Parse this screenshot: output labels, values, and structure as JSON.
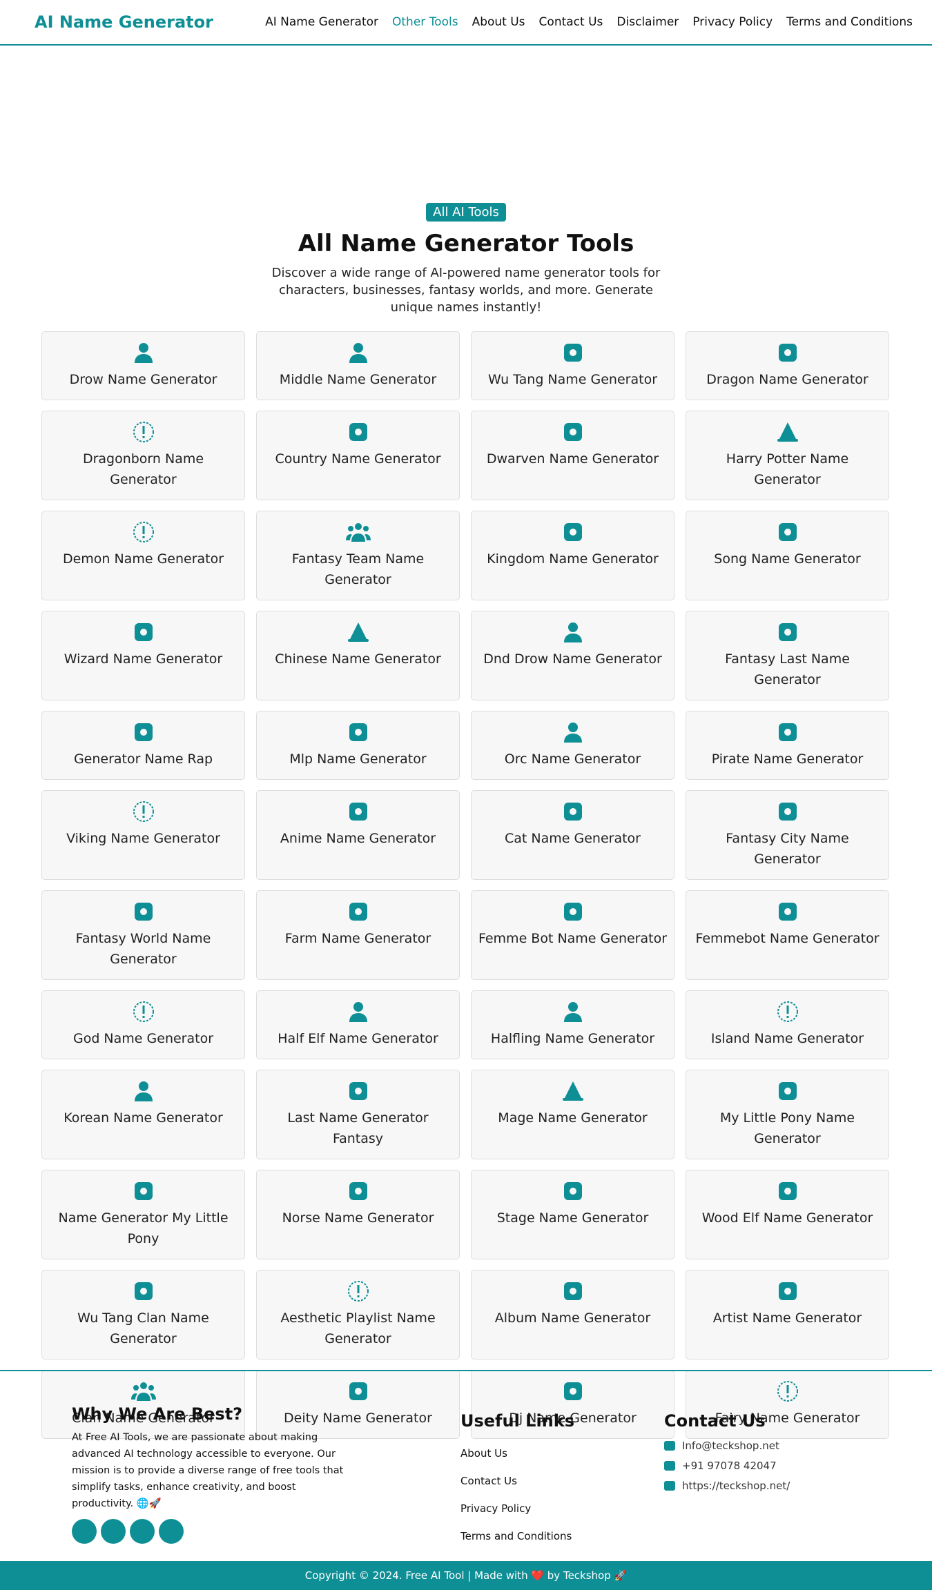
{
  "header": {
    "logo": "AI Name Generator",
    "nav": [
      "AI Name Generator",
      "Other Tools",
      "About Us",
      "Contact Us",
      "Disclaimer",
      "Privacy Policy",
      "Terms and Conditions"
    ]
  },
  "hero": {
    "badge": "All AI Tools",
    "title": "All Name Generator Tools",
    "description": "Discover a wide range of AI-powered name generator tools for characters, businesses, fantasy worlds, and more. Generate unique names instantly!"
  },
  "tools": [
    "Drow Name Generator",
    "Middle Name Generator",
    "Wu Tang Name Generator",
    "Dragon Name Generator",
    "Dragonborn Name Generator",
    "Country Name Generator",
    "Dwarven Name Generator",
    "Harry Potter Name Generator",
    "Demon Name Generator",
    "Fantasy Team Name Generator",
    "Kingdom Name Generator",
    "Song Name Generator",
    "Wizard Name Generator",
    "Chinese Name Generator",
    "Dnd Drow Name Generator",
    "Fantasy Last Name Generator",
    "Generator Name Rap",
    "Mlp Name Generator",
    "Orc Name Generator",
    "Pirate Name Generator",
    "Viking Name Generator",
    "Anime Name Generator",
    "Cat Name Generator",
    "Fantasy City Name Generator",
    "Fantasy World Name Generator",
    "Farm Name Generator",
    "Femme Bot Name Generator",
    "Femmebot Name Generator",
    "God Name Generator",
    "Half Elf Name Generator",
    "Halfling Name Generator",
    "Island Name Generator",
    "Korean Name Generator",
    "Last Name Generator Fantasy",
    "Mage Name Generator",
    "My Little Pony Name Generator",
    "Name Generator My Little Pony",
    "Norse Name Generator",
    "Stage Name Generator",
    "Wood Elf Name Generator",
    "Wu Tang Clan Name Generator",
    "Aesthetic Playlist Name Generator",
    "Album Name Generator",
    "Artist Name Generator",
    "Clan Name Generator",
    "Deity Name Generator",
    "Dj Name Generator",
    "Fairy Name Generator"
  ],
  "footer": {
    "about": {
      "title": "Why We Are Best?",
      "text": "At Free AI Tools, we are passionate about making advanced AI technology accessible to everyone. Our mission is to provide a diverse range of free tools that simplify tasks, enhance creativity, and boost productivity. 🌐🚀"
    },
    "links": {
      "title": "Useful Links",
      "items": [
        "About Us",
        "Contact Us",
        "Privacy Policy",
        "Terms and Conditions"
      ]
    },
    "contact": {
      "title": "Contact Us",
      "items": [
        "Info@teckshop.net",
        "+91 97078 42047",
        "https://teckshop.net/"
      ]
    },
    "copyright": "Copyright © 2024. Free AI Tool | Made with ❤️ by Teckshop 🚀"
  }
}
